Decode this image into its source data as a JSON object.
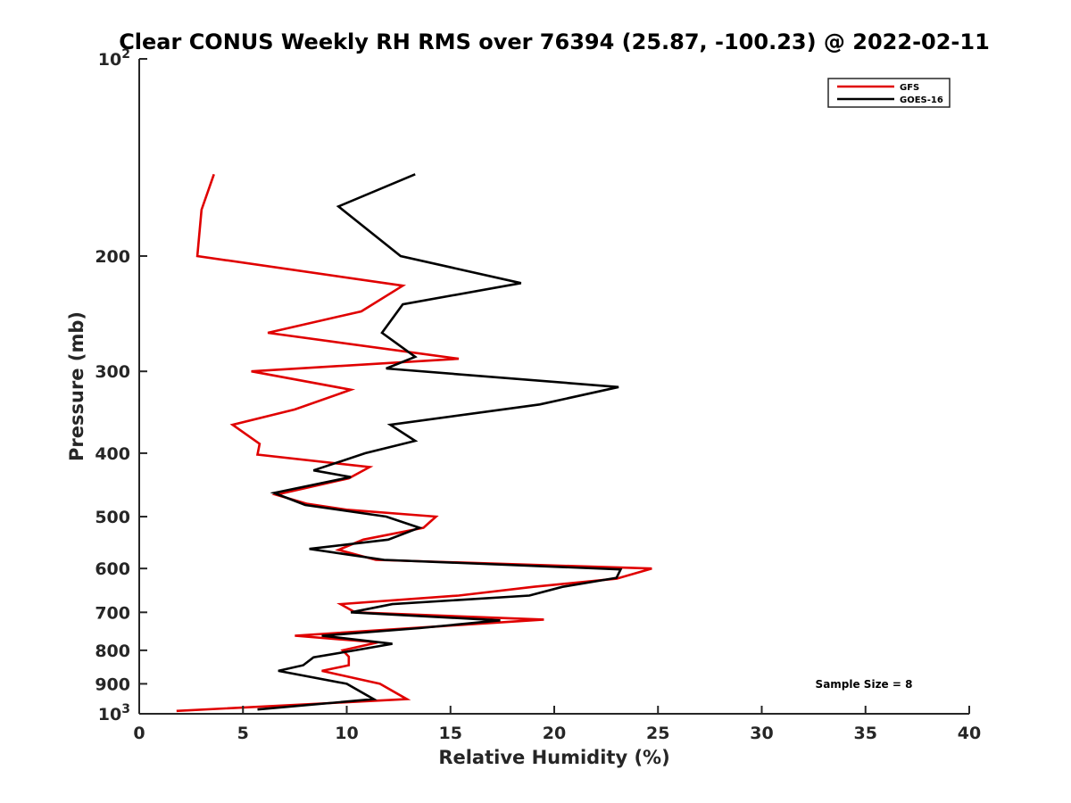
{
  "chart_data": {
    "type": "line",
    "title": "Clear CONUS Weekly RH RMS over 76394 (25.87, -100.23) @ 2022-02-11",
    "xlabel": "Relative Humidity (%)",
    "ylabel": "Pressure (mb)",
    "xlim": [
      0,
      40
    ],
    "ylim": [
      100,
      1000
    ],
    "y_scale": "log",
    "y_reversed": true,
    "grid": false,
    "legend_position": "top-right",
    "x_ticks": [
      "0",
      "5",
      "10",
      "15",
      "20",
      "25",
      "30",
      "35",
      "40"
    ],
    "y_ticks": [
      {
        "value": 100,
        "label": "10",
        "sup": "2"
      },
      {
        "value": 200,
        "label": "200",
        "sup": ""
      },
      {
        "value": 300,
        "label": "300",
        "sup": ""
      },
      {
        "value": 400,
        "label": "400",
        "sup": ""
      },
      {
        "value": 500,
        "label": "500",
        "sup": ""
      },
      {
        "value": 600,
        "label": "600",
        "sup": ""
      },
      {
        "value": 700,
        "label": "700",
        "sup": ""
      },
      {
        "value": 800,
        "label": "800",
        "sup": ""
      },
      {
        "value": 900,
        "label": "900",
        "sup": ""
      },
      {
        "value": 1000,
        "label": "10",
        "sup": "3"
      }
    ],
    "annotation": "Sample Size = 8",
    "series": [
      {
        "name": "GFS",
        "color": "#e00000",
        "points": [
          [
            3.6,
            150
          ],
          [
            3.0,
            170
          ],
          [
            2.8,
            200
          ],
          [
            12.7,
            222
          ],
          [
            10.7,
            243
          ],
          [
            6.2,
            262
          ],
          [
            15.4,
            287
          ],
          [
            5.4,
            300
          ],
          [
            10.2,
            320
          ],
          [
            7.5,
            343
          ],
          [
            4.5,
            362
          ],
          [
            5.8,
            387
          ],
          [
            5.7,
            402
          ],
          [
            11.1,
            420
          ],
          [
            10.1,
            437
          ],
          [
            6.6,
            463
          ],
          [
            8.1,
            478
          ],
          [
            10.0,
            488
          ],
          [
            14.3,
            500
          ],
          [
            13.7,
            520
          ],
          [
            10.8,
            542
          ],
          [
            9.6,
            562
          ],
          [
            11.4,
            582
          ],
          [
            24.7,
            600
          ],
          [
            23.0,
            622
          ],
          [
            19.0,
            640
          ],
          [
            15.4,
            660
          ],
          [
            9.7,
            680
          ],
          [
            10.4,
            700
          ],
          [
            19.5,
            718
          ],
          [
            14.5,
            735
          ],
          [
            7.5,
            760
          ],
          [
            11.5,
            778
          ],
          [
            9.8,
            800
          ],
          [
            10.1,
            818
          ],
          [
            10.1,
            843
          ],
          [
            8.8,
            860
          ],
          [
            11.6,
            900
          ],
          [
            12.9,
            950
          ],
          [
            1.8,
            990
          ]
        ]
      },
      {
        "name": "GOES-16",
        "color": "#000000",
        "points": [
          [
            13.3,
            150
          ],
          [
            9.6,
            168
          ],
          [
            12.6,
            200
          ],
          [
            18.4,
            220
          ],
          [
            12.7,
            237
          ],
          [
            11.7,
            262
          ],
          [
            13.3,
            285
          ],
          [
            11.9,
            297
          ],
          [
            23.1,
            317
          ],
          [
            19.3,
            337
          ],
          [
            12.1,
            362
          ],
          [
            13.3,
            383
          ],
          [
            10.9,
            400
          ],
          [
            8.4,
            425
          ],
          [
            10.2,
            435
          ],
          [
            6.5,
            460
          ],
          [
            8.0,
            480
          ],
          [
            11.9,
            500
          ],
          [
            13.5,
            520
          ],
          [
            12.0,
            542
          ],
          [
            8.2,
            560
          ],
          [
            11.8,
            582
          ],
          [
            23.2,
            602
          ],
          [
            23.0,
            620
          ],
          [
            20.4,
            640
          ],
          [
            18.8,
            660
          ],
          [
            12.2,
            680
          ],
          [
            10.2,
            700
          ],
          [
            17.4,
            720
          ],
          [
            13.5,
            740
          ],
          [
            8.8,
            760
          ],
          [
            12.2,
            782
          ],
          [
            10.4,
            800
          ],
          [
            8.4,
            820
          ],
          [
            7.9,
            843
          ],
          [
            6.7,
            860
          ],
          [
            10.0,
            900
          ],
          [
            11.3,
            950
          ],
          [
            5.7,
            985
          ]
        ]
      }
    ]
  }
}
